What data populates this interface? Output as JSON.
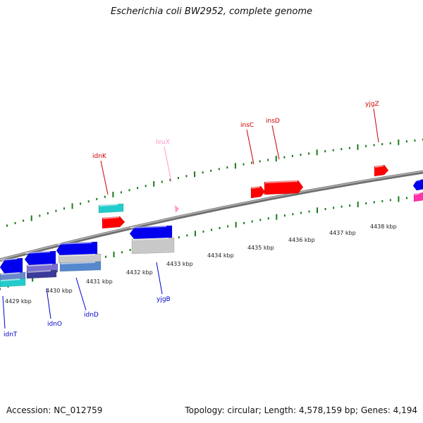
{
  "title": "Escherichia coli BW2952, complete genome",
  "accession": "Accession: NC_012759",
  "summary": "Topology: circular; Length: 4,578,159 bp; Genes: 4,194",
  "colors": {
    "backbone": "#808080",
    "tick": "#1a7a1a",
    "forward_gene": "#ff0000",
    "reverse_gene": "#0000ee",
    "rna_gene": "#ff99cc",
    "cyan_feature": "#22cccc",
    "gray_feature": "#c8c8c8",
    "purple_feature": "#7a6fd0",
    "magenta_feature": "#ff33aa"
  },
  "scale_labels": [
    "4429 kbp",
    "4430 kbp",
    "4431 kbp",
    "4432 kbp",
    "4433 kbp",
    "4434 kbp",
    "4435 kbp",
    "4436 kbp",
    "4437 kbp",
    "4438 kbp"
  ],
  "forward_labels": [
    "idnK",
    "leuX",
    "insC",
    "insD",
    "yjgZ"
  ],
  "reverse_labels": [
    "idnT",
    "idnO",
    "idnD",
    "yjgB"
  ]
}
